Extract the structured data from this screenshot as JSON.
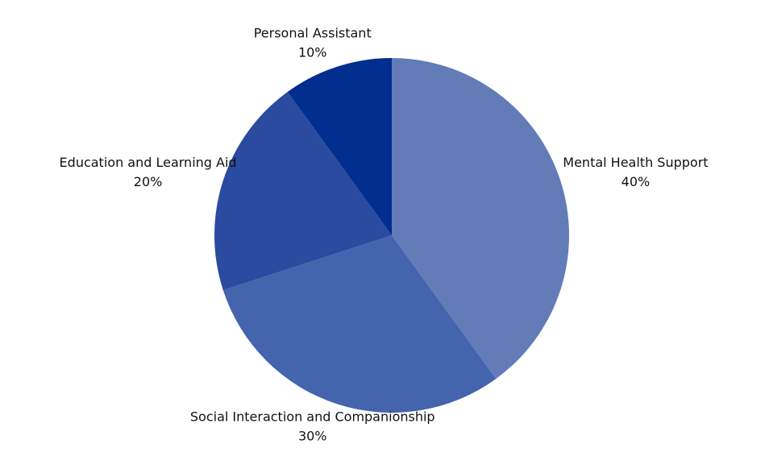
{
  "chart_data": {
    "type": "pie",
    "categories": [
      "Mental Health Support",
      "Social Interaction and Companionship",
      "Education and Learning Aid",
      "Personal Assistant"
    ],
    "values": [
      40,
      30,
      20,
      10
    ],
    "value_labels": [
      "40%",
      "30%",
      "20%",
      "10%"
    ],
    "colors": [
      "#637cb8",
      "#4464ad",
      "#2a4b9f",
      "#012e8f"
    ]
  }
}
